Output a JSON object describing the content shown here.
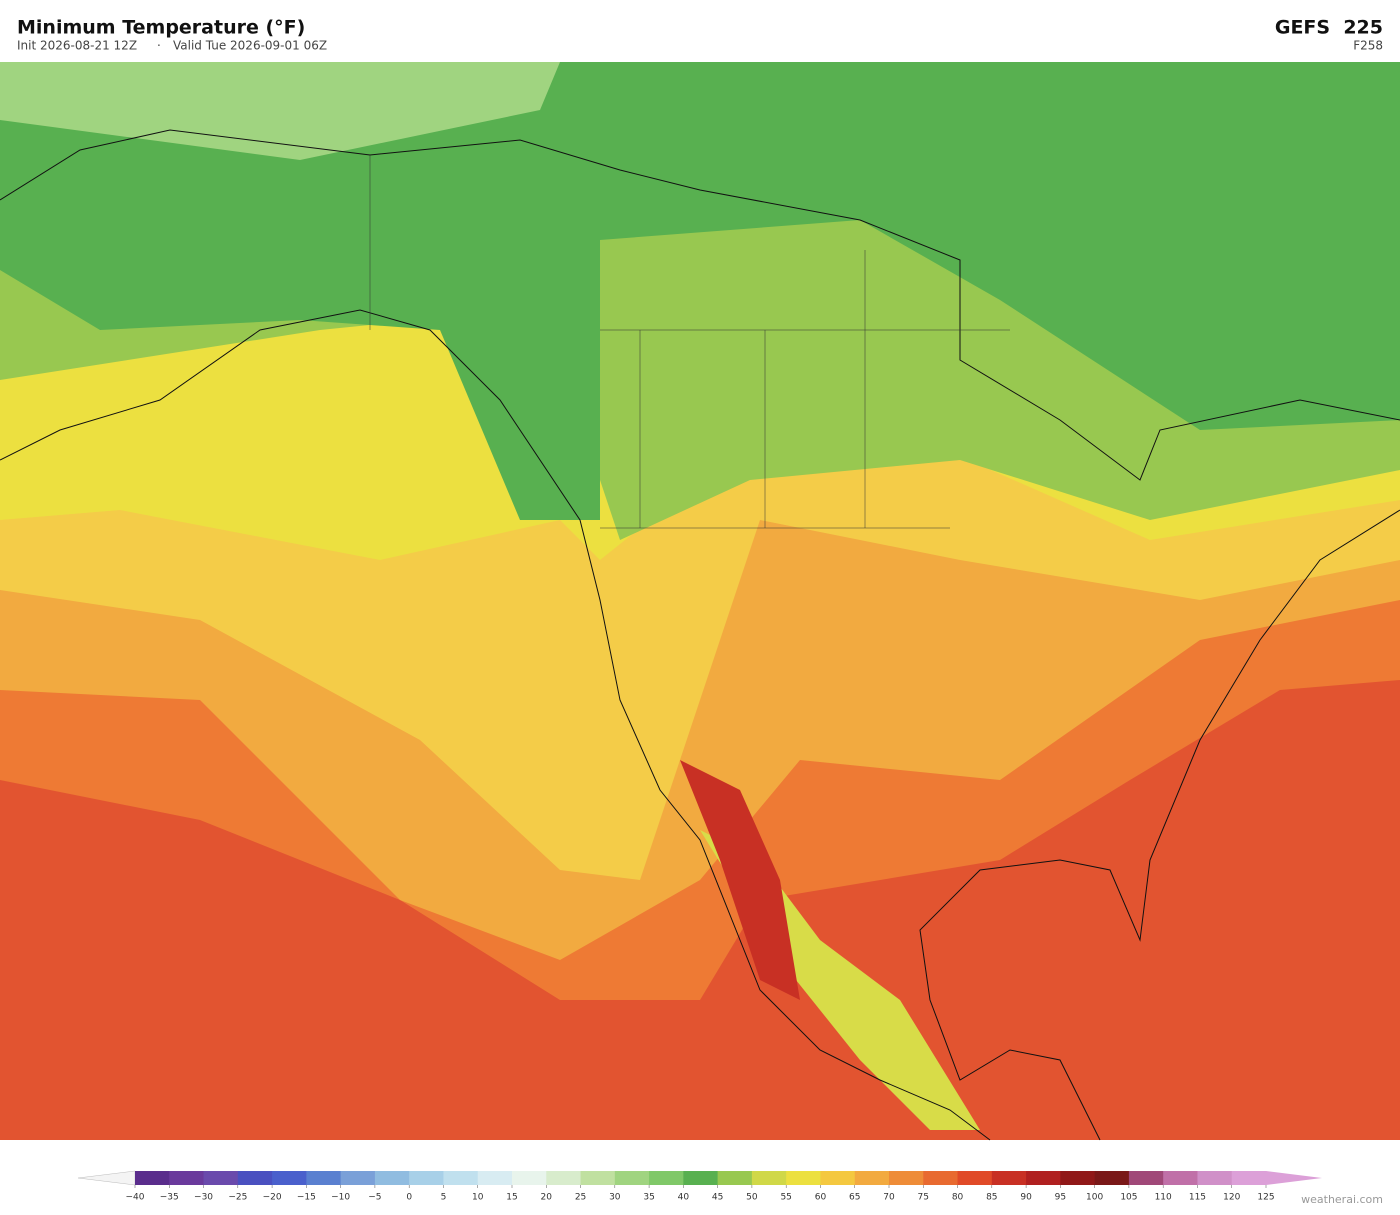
{
  "header": {
    "title": "Minimum Temperature  (°F)",
    "init": "Init 2026-08-21 12Z",
    "separator": "·",
    "valid": "Valid Tue 2026-09-01 06Z",
    "model": "GEFS  225",
    "forecast_hour": "F258"
  },
  "colorbar": {
    "ticks": [
      {
        "value": -40,
        "label": "−40"
      },
      {
        "value": -35,
        "label": "−35"
      },
      {
        "value": -30,
        "label": "−30"
      },
      {
        "value": -25,
        "label": "−25"
      },
      {
        "value": -20,
        "label": "−20"
      },
      {
        "value": -15,
        "label": "−15"
      },
      {
        "value": -10,
        "label": "−10"
      },
      {
        "value": -5,
        "label": "−5"
      },
      0,
      5,
      10,
      15,
      20,
      25,
      30,
      35,
      40,
      45,
      50,
      55,
      60,
      65,
      70,
      75,
      80,
      85,
      90,
      95,
      100,
      105,
      110,
      115,
      120,
      125
    ],
    "colors": [
      "#5a2d8c",
      "#6a3a9c",
      "#6a4aac",
      "#4a50c0",
      "#4a60cc",
      "#5a80d0",
      "#7aa0d8",
      "#90bce0",
      "#a8d0e8",
      "#c0e0ee",
      "#d8ecf2",
      "#e8f4ec",
      "#d8eccc",
      "#c0e0a0",
      "#a0d480",
      "#80c868",
      "#58b050",
      "#98c850",
      "#d0d848",
      "#ece040",
      "#f4c840",
      "#f2aa40",
      "#ee8c38",
      "#e86a30",
      "#e04a28",
      "#c83024",
      "#b02020",
      "#901818",
      "#7a1818",
      "#a04878",
      "#c070a8",
      "#d090c8",
      "#dca0d8"
    ],
    "under_color": "#f4f4f4",
    "over_color": "#dca0d8"
  },
  "watermark": "weatherai.com"
}
